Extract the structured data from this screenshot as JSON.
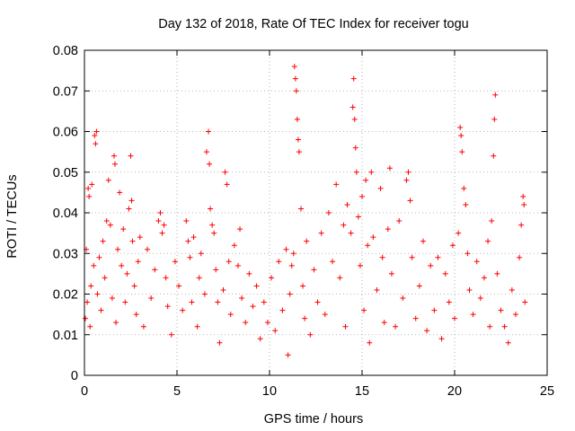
{
  "chart_data": {
    "type": "scatter",
    "title": "Day 132 of 2018, Rate Of TEC Index for receiver togu",
    "xlabel": "GPS time / hours",
    "ylabel": "ROTI / TECUs",
    "xlim": [
      0,
      25
    ],
    "ylim": [
      0,
      0.08
    ],
    "xticks": [
      0,
      5,
      10,
      15,
      20,
      25
    ],
    "xtick_labels": [
      "0",
      "5",
      "10",
      "15",
      "20",
      "25"
    ],
    "yticks": [
      0,
      0.01,
      0.02,
      0.03,
      0.04,
      0.05,
      0.06,
      0.07,
      0.08
    ],
    "ytick_labels": [
      "0",
      "0.01",
      "0.02",
      "0.03",
      "0.04",
      "0.05",
      "0.06",
      "0.07",
      "0.08"
    ],
    "grid": true,
    "marker": "+",
    "series": [
      {
        "name": "ROTI",
        "color": "#ff0000",
        "points": [
          [
            0.05,
            0.014
          ],
          [
            0.1,
            0.031
          ],
          [
            0.15,
            0.018
          ],
          [
            0.2,
            0.046
          ],
          [
            0.25,
            0.044
          ],
          [
            0.3,
            0.012
          ],
          [
            0.35,
            0.022
          ],
          [
            0.4,
            0.047
          ],
          [
            0.5,
            0.027
          ],
          [
            0.55,
            0.059
          ],
          [
            0.6,
            0.057
          ],
          [
            0.65,
            0.06
          ],
          [
            0.7,
            0.02
          ],
          [
            0.8,
            0.029
          ],
          [
            0.9,
            0.016
          ],
          [
            1.0,
            0.033
          ],
          [
            1.1,
            0.024
          ],
          [
            1.2,
            0.038
          ],
          [
            1.3,
            0.048
          ],
          [
            1.4,
            0.037
          ],
          [
            1.5,
            0.019
          ],
          [
            1.6,
            0.054
          ],
          [
            1.65,
            0.052
          ],
          [
            1.7,
            0.013
          ],
          [
            1.8,
            0.031
          ],
          [
            1.9,
            0.045
          ],
          [
            2.0,
            0.027
          ],
          [
            2.1,
            0.036
          ],
          [
            2.2,
            0.018
          ],
          [
            2.3,
            0.025
          ],
          [
            2.4,
            0.041
          ],
          [
            2.5,
            0.054
          ],
          [
            2.55,
            0.043
          ],
          [
            2.6,
            0.033
          ],
          [
            2.7,
            0.022
          ],
          [
            2.8,
            0.015
          ],
          [
            2.9,
            0.028
          ],
          [
            3.0,
            0.034
          ],
          [
            3.2,
            0.012
          ],
          [
            3.4,
            0.031
          ],
          [
            3.6,
            0.019
          ],
          [
            3.8,
            0.026
          ],
          [
            4.0,
            0.038
          ],
          [
            4.1,
            0.04
          ],
          [
            4.2,
            0.035
          ],
          [
            4.3,
            0.037
          ],
          [
            4.4,
            0.024
          ],
          [
            4.5,
            0.017
          ],
          [
            4.7,
            0.01
          ],
          [
            4.9,
            0.028
          ],
          [
            5.1,
            0.022
          ],
          [
            5.3,
            0.016
          ],
          [
            5.5,
            0.038
          ],
          [
            5.6,
            0.033
          ],
          [
            5.7,
            0.029
          ],
          [
            5.8,
            0.018
          ],
          [
            5.9,
            0.034
          ],
          [
            6.1,
            0.012
          ],
          [
            6.2,
            0.024
          ],
          [
            6.3,
            0.03
          ],
          [
            6.5,
            0.02
          ],
          [
            6.6,
            0.055
          ],
          [
            6.7,
            0.06
          ],
          [
            6.75,
            0.052
          ],
          [
            6.8,
            0.041
          ],
          [
            6.9,
            0.037
          ],
          [
            7.0,
            0.035
          ],
          [
            7.1,
            0.026
          ],
          [
            7.2,
            0.018
          ],
          [
            7.3,
            0.008
          ],
          [
            7.5,
            0.021
          ],
          [
            7.6,
            0.05
          ],
          [
            7.7,
            0.047
          ],
          [
            7.8,
            0.028
          ],
          [
            7.9,
            0.015
          ],
          [
            8.1,
            0.032
          ],
          [
            8.3,
            0.027
          ],
          [
            8.4,
            0.036
          ],
          [
            8.5,
            0.019
          ],
          [
            8.7,
            0.013
          ],
          [
            8.9,
            0.025
          ],
          [
            9.1,
            0.017
          ],
          [
            9.3,
            0.022
          ],
          [
            9.5,
            0.009
          ],
          [
            9.7,
            0.018
          ],
          [
            9.9,
            0.013
          ],
          [
            10.1,
            0.024
          ],
          [
            10.3,
            0.011
          ],
          [
            10.5,
            0.028
          ],
          [
            10.7,
            0.016
          ],
          [
            10.9,
            0.031
          ],
          [
            11.0,
            0.005
          ],
          [
            11.1,
            0.02
          ],
          [
            11.2,
            0.027
          ],
          [
            11.3,
            0.03
          ],
          [
            11.35,
            0.076
          ],
          [
            11.4,
            0.073
          ],
          [
            11.45,
            0.07
          ],
          [
            11.5,
            0.063
          ],
          [
            11.55,
            0.058
          ],
          [
            11.6,
            0.055
          ],
          [
            11.7,
            0.041
          ],
          [
            11.8,
            0.022
          ],
          [
            11.9,
            0.014
          ],
          [
            12.0,
            0.033
          ],
          [
            12.2,
            0.01
          ],
          [
            12.4,
            0.026
          ],
          [
            12.6,
            0.018
          ],
          [
            12.8,
            0.035
          ],
          [
            13.0,
            0.015
          ],
          [
            13.2,
            0.04
          ],
          [
            13.4,
            0.028
          ],
          [
            13.6,
            0.047
          ],
          [
            13.8,
            0.024
          ],
          [
            14.0,
            0.037
          ],
          [
            14.1,
            0.012
          ],
          [
            14.2,
            0.042
          ],
          [
            14.4,
            0.035
          ],
          [
            14.5,
            0.066
          ],
          [
            14.55,
            0.073
          ],
          [
            14.6,
            0.063
          ],
          [
            14.65,
            0.056
          ],
          [
            14.7,
            0.05
          ],
          [
            14.8,
            0.039
          ],
          [
            14.9,
            0.027
          ],
          [
            15.0,
            0.044
          ],
          [
            15.1,
            0.016
          ],
          [
            15.2,
            0.048
          ],
          [
            15.3,
            0.032
          ],
          [
            15.4,
            0.008
          ],
          [
            15.5,
            0.05
          ],
          [
            15.6,
            0.034
          ],
          [
            15.8,
            0.021
          ],
          [
            16.0,
            0.046
          ],
          [
            16.1,
            0.029
          ],
          [
            16.2,
            0.013
          ],
          [
            16.4,
            0.036
          ],
          [
            16.5,
            0.051
          ],
          [
            16.6,
            0.025
          ],
          [
            16.8,
            0.012
          ],
          [
            17.0,
            0.038
          ],
          [
            17.2,
            0.019
          ],
          [
            17.4,
            0.048
          ],
          [
            17.5,
            0.05
          ],
          [
            17.6,
            0.043
          ],
          [
            17.7,
            0.029
          ],
          [
            17.9,
            0.014
          ],
          [
            18.1,
            0.022
          ],
          [
            18.3,
            0.033
          ],
          [
            18.5,
            0.011
          ],
          [
            18.7,
            0.027
          ],
          [
            18.9,
            0.016
          ],
          [
            19.1,
            0.029
          ],
          [
            19.3,
            0.009
          ],
          [
            19.5,
            0.025
          ],
          [
            19.7,
            0.018
          ],
          [
            19.9,
            0.032
          ],
          [
            20.0,
            0.014
          ],
          [
            20.2,
            0.035
          ],
          [
            20.3,
            0.061
          ],
          [
            20.35,
            0.059
          ],
          [
            20.4,
            0.055
          ],
          [
            20.5,
            0.046
          ],
          [
            20.6,
            0.042
          ],
          [
            20.7,
            0.03
          ],
          [
            20.8,
            0.021
          ],
          [
            21.0,
            0.015
          ],
          [
            21.2,
            0.028
          ],
          [
            21.4,
            0.019
          ],
          [
            21.6,
            0.024
          ],
          [
            21.8,
            0.033
          ],
          [
            21.9,
            0.012
          ],
          [
            22.0,
            0.038
          ],
          [
            22.1,
            0.054
          ],
          [
            22.15,
            0.063
          ],
          [
            22.2,
            0.069
          ],
          [
            22.3,
            0.025
          ],
          [
            22.5,
            0.016
          ],
          [
            22.7,
            0.012
          ],
          [
            22.9,
            0.008
          ],
          [
            23.1,
            0.021
          ],
          [
            23.3,
            0.015
          ],
          [
            23.5,
            0.029
          ],
          [
            23.6,
            0.037
          ],
          [
            23.7,
            0.044
          ],
          [
            23.75,
            0.042
          ],
          [
            23.8,
            0.018
          ]
        ]
      }
    ]
  }
}
